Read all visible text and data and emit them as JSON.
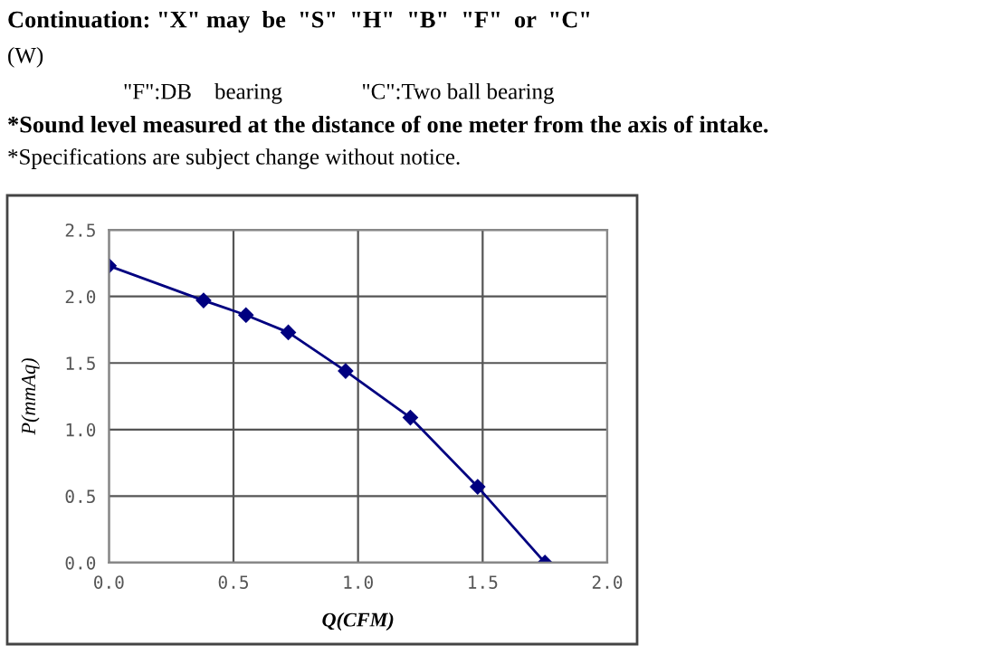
{
  "chart_data": {
    "type": "line",
    "xlabel": "Q(CFM)",
    "ylabel": "P(mmAq)",
    "annotations": [
      "Continuation: \"X\" may  be  \"S\"  \"H\"  \"B\"  \"F\"  or  \"C\"",
      "(W)",
      "\"F\":DB    bearing              \"C\":Two ball bearing",
      "*Sound level measured at the distance of one meter from the axis of intake.",
      "*Specifications are subject change without notice."
    ],
    "series": [
      {
        "color": "#000080",
        "x": [
          0,
          0.38,
          0.55,
          0.72,
          0.95,
          1.21,
          1.48,
          1.75
        ],
        "values": [
          2.23,
          1.97,
          1.86,
          1.73,
          1.44,
          1.09,
          0.57,
          0
        ]
      }
    ],
    "marker": "diamond",
    "line_style": "solid",
    "grid": true,
    "xlim": [
      0,
      2
    ],
    "ylim": [
      0,
      2.5
    ],
    "xticks": [
      {
        "value": 0,
        "label": "0.0"
      },
      {
        "value": 0.5,
        "label": "0.5"
      },
      {
        "value": 1,
        "label": "1.0"
      },
      {
        "value": 1.5,
        "label": "1.5"
      },
      {
        "value": 2,
        "label": "2.0"
      }
    ],
    "yticks": [
      {
        "value": 0,
        "label": "0.0"
      },
      {
        "value": 0.5,
        "label": "0.5"
      },
      {
        "value": 1,
        "label": "1.0"
      },
      {
        "value": 1.5,
        "label": "1.5"
      },
      {
        "value": 2,
        "label": "2.0"
      },
      {
        "value": 2.5,
        "label": "2.5"
      }
    ]
  }
}
